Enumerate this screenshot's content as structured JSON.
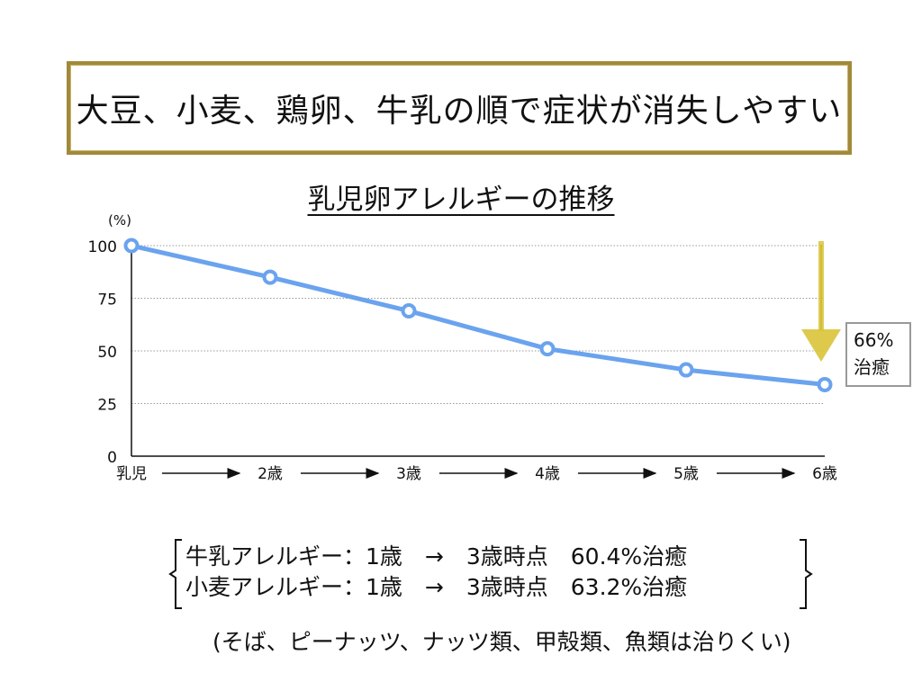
{
  "headline": "大豆、小麦、鶏卵、牛乳の順で症状が消失しやすい",
  "chart_data": {
    "type": "line",
    "title": "乳児卵アレルギーの推移",
    "ylabel": "(%)",
    "xlabel": "",
    "categories": [
      "乳児",
      "2歳",
      "3歳",
      "4歳",
      "5歳",
      "6歳"
    ],
    "y_ticks": [
      0,
      25,
      50,
      75,
      100
    ],
    "ylim": [
      0,
      100
    ],
    "grid": true,
    "series": [
      {
        "values": [
          100,
          85,
          69,
          51,
          41,
          34
        ]
      }
    ],
    "line_color": "#6aa3ee",
    "arrow_color": "#d9c43a"
  },
  "callout": {
    "line1": "66%",
    "line2": "治癒"
  },
  "notes": {
    "line1": "牛乳アレルギー：1歳　→　3歳時点　60.4%治癒",
    "line2": "小麦アレルギー：1歳　→　3歳時点　63.2%治癒"
  },
  "footnote": "(そば、ピーナッツ、ナッツ類、甲殻類、魚類は治りくい)"
}
